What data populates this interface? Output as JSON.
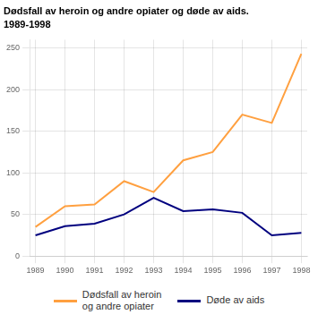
{
  "chart_data": {
    "type": "line",
    "title": "Dødsfall av heroin og andre opiater og døde av aids.",
    "subtitle": "1989-1998",
    "x": [
      1989,
      1990,
      1991,
      1992,
      1993,
      1994,
      1995,
      1996,
      1997,
      1998
    ],
    "series": [
      {
        "name": "Dødsfall av heroin\nog andre opiater",
        "color": "#FFA040",
        "values": [
          35,
          60,
          62,
          90,
          77,
          115,
          125,
          170,
          160,
          243
        ]
      },
      {
        "name": "Døde av aids",
        "color": "#00007F",
        "values": [
          25,
          36,
          39,
          50,
          70,
          54,
          56,
          52,
          25,
          28
        ]
      }
    ],
    "xlim": [
      1988.8,
      1998.2
    ],
    "xticks": [
      1989,
      1990,
      1991,
      1992,
      1993,
      1994,
      1995,
      1996,
      1997,
      1998
    ],
    "ylim": [
      0,
      260
    ],
    "yticks": [
      0,
      50,
      100,
      150,
      200,
      250
    ],
    "grid": true,
    "legend": "bottom"
  }
}
